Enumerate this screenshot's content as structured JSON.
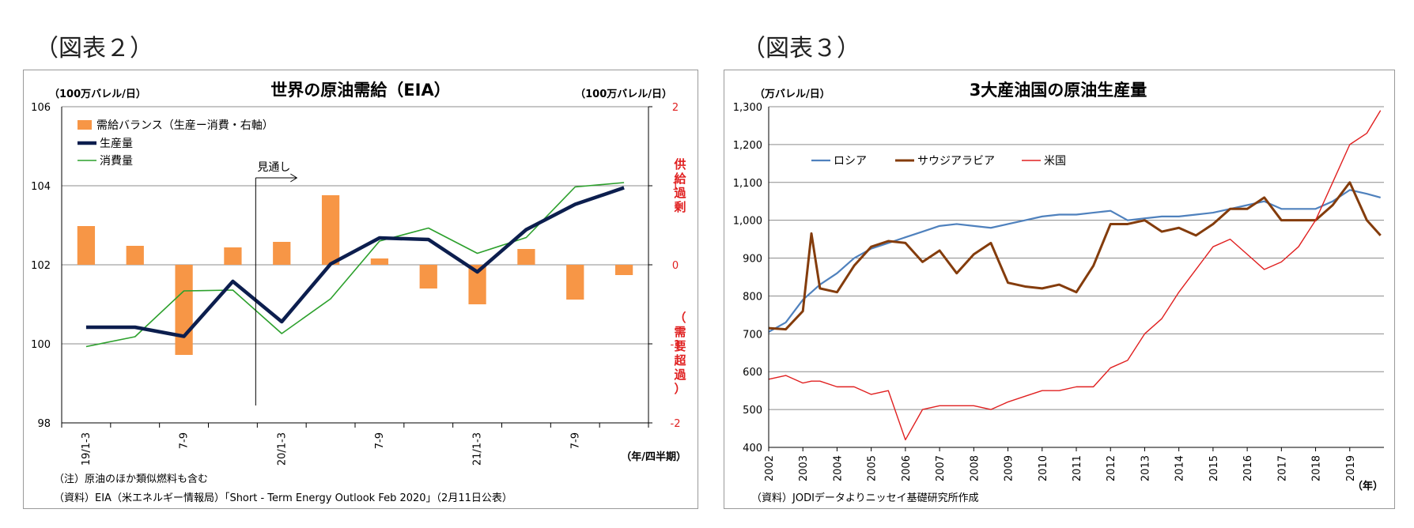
{
  "labels": {
    "left": "（図表２）",
    "right": "（図表３）"
  },
  "chart_data": [
    {
      "type": "bar+line",
      "title": "世界の原油需給（EIA）",
      "ylabel_left": "（100万バレル/日）",
      "ylabel_right": "（100万バレル/日）",
      "xlabel": "（年/四半期）",
      "ylim_left": [
        98,
        106
      ],
      "ylim_right": [
        -2,
        2
      ],
      "left_ticks": [
        "98",
        "100",
        "102",
        "104",
        "106"
      ],
      "right_ticks": [
        "-2",
        "-1",
        "0",
        "1",
        "2"
      ],
      "right_top_label": "供給過剰",
      "right_bottom_label": "（需要超過）",
      "forecast_label": "見通し",
      "categories": [
        "19/1-3",
        "",
        "7-9",
        "",
        "20/1-3",
        "",
        "7-9",
        "",
        "21/1-3",
        "",
        "7-9",
        ""
      ],
      "series": [
        {
          "name": "需給バランス（生産ー消費・右軸）",
          "axis": "right",
          "kind": "bar",
          "color": "#f79646",
          "values": [
            0.49,
            0.24,
            -1.14,
            0.22,
            0.29,
            0.88,
            0.08,
            -0.3,
            -0.5,
            0.2,
            -0.44,
            -0.13
          ]
        },
        {
          "name": "生産量",
          "axis": "left",
          "kind": "line",
          "color": "#0c1e4e",
          "values": [
            100.42,
            100.42,
            100.19,
            101.58,
            100.56,
            102.02,
            102.68,
            102.64,
            101.82,
            102.89,
            103.53,
            103.95
          ]
        },
        {
          "name": "消費量",
          "axis": "left",
          "kind": "line",
          "color": "#2ca02c",
          "values": [
            99.93,
            100.18,
            101.34,
            101.36,
            100.26,
            101.14,
            102.6,
            102.93,
            102.29,
            102.69,
            103.97,
            104.08
          ]
        }
      ],
      "notes": [
        "（注）原油のほか類似燃料も含む",
        "（資料）EIA（米エネルギー情報局）「Short - Term Energy Outlook Feb 2020」（2月11日公表）"
      ]
    },
    {
      "type": "line",
      "title": "3大産油国の原油生産量",
      "ylabel": "（万バレル/日）",
      "xlabel": "（年）",
      "ylim": [
        400,
        1300
      ],
      "y_ticks": [
        "400",
        "500",
        "600",
        "700",
        "800",
        "900",
        "1,000",
        "1,100",
        "1,200",
        "1,300"
      ],
      "x_ticks": [
        "2002",
        "2003",
        "2004",
        "2005",
        "2006",
        "2007",
        "2008",
        "2009",
        "2010",
        "2011",
        "2012",
        "2013",
        "2014",
        "2015",
        "2016",
        "2017",
        "2018",
        "2019"
      ],
      "x": [
        2002.0,
        2002.5,
        2003.0,
        2003.25,
        2003.5,
        2004.0,
        2004.5,
        2005.0,
        2005.5,
        2006.0,
        2006.5,
        2007.0,
        2007.5,
        2008.0,
        2008.5,
        2009.0,
        2009.5,
        2010.0,
        2010.5,
        2011.0,
        2011.5,
        2012.0,
        2012.5,
        2013.0,
        2013.5,
        2014.0,
        2014.5,
        2015.0,
        2015.5,
        2016.0,
        2016.5,
        2017.0,
        2017.5,
        2018.0,
        2018.5,
        2019.0,
        2019.5,
        2019.9
      ],
      "series": [
        {
          "name": "ロシア",
          "color": "#4f81bd",
          "values": [
            705,
            730,
            790,
            810,
            830,
            860,
            900,
            925,
            940,
            955,
            970,
            985,
            990,
            985,
            980,
            990,
            1000,
            1010,
            1015,
            1015,
            1020,
            1025,
            1000,
            1005,
            1010,
            1010,
            1015,
            1020,
            1030,
            1040,
            1050,
            1030,
            1030,
            1030,
            1050,
            1080,
            1070,
            1060
          ]
        },
        {
          "name": "サウジアラビア",
          "color": "#843c0c",
          "values": [
            715,
            712,
            760,
            965,
            820,
            810,
            880,
            930,
            945,
            940,
            890,
            920,
            860,
            910,
            940,
            835,
            825,
            820,
            830,
            810,
            880,
            990,
            990,
            1000,
            970,
            980,
            960,
            990,
            1030,
            1030,
            1060,
            1000,
            1000,
            1000,
            1040,
            1100,
            1000,
            960
          ]
        },
        {
          "name": "米国",
          "color": "#e02020",
          "values": [
            580,
            590,
            570,
            575,
            575,
            560,
            560,
            540,
            550,
            420,
            500,
            510,
            510,
            510,
            500,
            520,
            535,
            550,
            550,
            560,
            560,
            610,
            630,
            700,
            740,
            810,
            870,
            930,
            950,
            910,
            870,
            890,
            930,
            1000,
            1100,
            1200,
            1230,
            1290
          ]
        }
      ],
      "notes": [
        "（資料）JODIデータよりニッセイ基礎研究所作成"
      ]
    }
  ]
}
